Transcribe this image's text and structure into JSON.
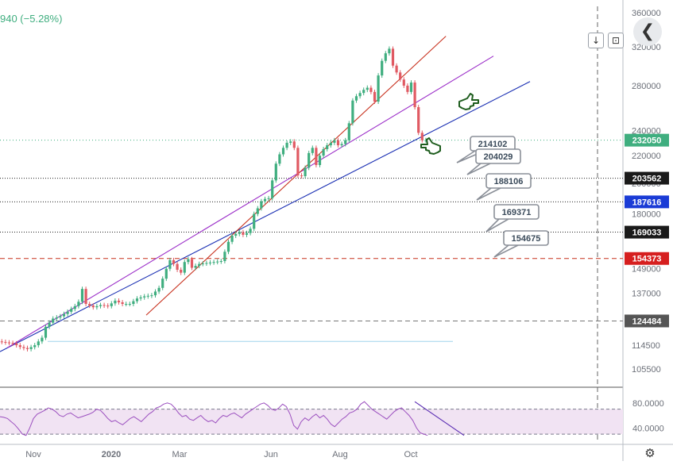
{
  "header": {
    "change_text": "940 (−5.28%)",
    "scroll_icon": "arrow-down-icon",
    "scroll_glyph": "↓",
    "toggle_icon": "scale-toggle-icon",
    "toggle_glyph": "⊡",
    "nav_icon": "chevron-left-icon",
    "nav_glyph": "❮"
  },
  "price_axis": {
    "ticks": [
      "360000",
      "320000",
      "280000",
      "240000",
      "220000",
      "200000",
      "180000",
      "149000",
      "137000",
      "114500",
      "105500"
    ],
    "tick_values": [
      360000,
      320000,
      280000,
      240000,
      220000,
      200000,
      180000,
      149000,
      137000,
      114500,
      105500
    ],
    "labels": [
      {
        "text": "232050",
        "value": 232050,
        "color": "#3fae7f"
      },
      {
        "text": "203562",
        "value": 203562,
        "color": "#1a1a1a"
      },
      {
        "text": "187616",
        "value": 187616,
        "color": "#1a3bd6"
      },
      {
        "text": "169033",
        "value": 169033,
        "color": "#1a1a1a"
      },
      {
        "text": "154373",
        "value": 154373,
        "color": "#d61f1f"
      },
      {
        "text": "124484",
        "value": 124484,
        "color": "#555555"
      }
    ]
  },
  "rsi_axis": {
    "ticks": [
      "80.0000",
      "40.0000"
    ],
    "tick_values": [
      80,
      40
    ]
  },
  "time_axis": {
    "labels": [
      "Nov",
      "2020",
      "Mar",
      "Jun",
      "Aug",
      "Oct"
    ]
  },
  "callouts": [
    "214102",
    "204029",
    "188106",
    "169371",
    "154675"
  ],
  "settings_icon": "gear-icon",
  "settings_glyph": "⚙",
  "chart_data": {
    "type": "candlestick",
    "y_scale": "log",
    "x_labels": [
      "Nov",
      "2020",
      "Mar",
      "Jun",
      "Aug",
      "Oct"
    ],
    "horizontal_levels": [
      232050,
      203562,
      187616,
      169033,
      154373,
      124484,
      116000
    ],
    "callout_values": [
      214102,
      204029,
      188106,
      169371,
      154675
    ],
    "price_path": [
      [
        0,
        116000
      ],
      [
        2,
        115600
      ],
      [
        4,
        115200
      ],
      [
        6,
        113800
      ],
      [
        8,
        113000
      ],
      [
        10,
        114500
      ],
      [
        12,
        117500
      ],
      [
        13,
        122000
      ],
      [
        15,
        125500
      ],
      [
        17,
        126500
      ],
      [
        19,
        128500
      ],
      [
        21,
        131000
      ],
      [
        22,
        133000
      ],
      [
        23,
        139000
      ],
      [
        24,
        132000
      ],
      [
        26,
        130500
      ],
      [
        28,
        131500
      ],
      [
        30,
        131000
      ],
      [
        32,
        133500
      ],
      [
        34,
        132000
      ],
      [
        36,
        132000
      ],
      [
        38,
        134500
      ],
      [
        40,
        135500
      ],
      [
        42,
        136000
      ],
      [
        44,
        139500
      ],
      [
        45,
        144000
      ],
      [
        46,
        149000
      ],
      [
        47,
        153500
      ],
      [
        48,
        151500
      ],
      [
        49,
        148500
      ],
      [
        50,
        147000
      ],
      [
        51,
        152500
      ],
      [
        52,
        154000
      ],
      [
        53,
        149500
      ],
      [
        55,
        151500
      ],
      [
        57,
        152000
      ],
      [
        59,
        152500
      ],
      [
        61,
        153000
      ],
      [
        62,
        158000
      ],
      [
        63,
        163500
      ],
      [
        64,
        167000
      ],
      [
        66,
        169000
      ],
      [
        67,
        167500
      ],
      [
        68,
        168500
      ],
      [
        69,
        171000
      ],
      [
        70,
        180000
      ],
      [
        71,
        183500
      ],
      [
        72,
        188000
      ],
      [
        73,
        189500
      ],
      [
        74,
        190000
      ],
      [
        75,
        202000
      ],
      [
        76,
        214000
      ],
      [
        77,
        221000
      ],
      [
        78,
        226000
      ],
      [
        79,
        230000
      ],
      [
        80,
        231000
      ],
      [
        81,
        226000
      ],
      [
        82,
        205500
      ],
      [
        83,
        205000
      ],
      [
        84,
        211000
      ],
      [
        85,
        222000
      ],
      [
        86,
        226000
      ],
      [
        87,
        213000
      ],
      [
        88,
        220000
      ],
      [
        89,
        225000
      ],
      [
        90,
        228000
      ],
      [
        91,
        230000
      ],
      [
        92,
        232000
      ],
      [
        93,
        228000
      ],
      [
        94,
        229000
      ],
      [
        95,
        232000
      ],
      [
        96,
        246000
      ],
      [
        97,
        266000
      ],
      [
        98,
        270000
      ],
      [
        99,
        273000
      ],
      [
        100,
        276000
      ],
      [
        101,
        278000
      ],
      [
        102,
        274000
      ],
      [
        103,
        265000
      ],
      [
        104,
        290000
      ],
      [
        105,
        305000
      ],
      [
        106,
        313000
      ],
      [
        107,
        318000
      ],
      [
        108,
        300000
      ],
      [
        109,
        293000
      ],
      [
        110,
        286000
      ],
      [
        111,
        280000
      ],
      [
        112,
        274000
      ],
      [
        113,
        283000
      ],
      [
        114,
        260000
      ],
      [
        115,
        238000
      ],
      [
        116,
        232000
      ],
      [
        117,
        232050
      ]
    ],
    "trendlines": [
      {
        "name": "",
        "color": "#1a2fb3",
        "from": [
          0,
          112000
        ],
        "to": [
          145,
          284000
        ]
      },
      {
        "name": "",
        "color": "#9b2dc8",
        "from": [
          2,
          113500
        ],
        "to": [
          135,
          310000
        ]
      },
      {
        "name": "",
        "color": "#c8321f",
        "from": [
          40,
          127000
        ],
        "to": [
          122,
          332000
        ]
      }
    ],
    "rsi": {
      "range": [
        20,
        100
      ],
      "levels": [
        70,
        30
      ],
      "values": [
        58,
        57,
        55,
        50,
        45,
        38,
        30,
        28,
        40,
        55,
        62,
        65,
        68,
        72,
        70,
        66,
        60,
        58,
        62,
        64,
        60,
        56,
        58,
        60,
        62,
        65,
        70,
        68,
        62,
        55,
        50,
        52,
        48,
        45,
        50,
        55,
        58,
        54,
        50,
        56,
        62,
        66,
        72,
        74,
        78,
        80,
        78,
        72,
        64,
        58,
        60,
        54,
        52,
        56,
        60,
        54,
        50,
        52,
        48,
        55,
        60,
        58,
        62,
        64,
        60,
        56,
        62,
        66,
        70,
        74,
        78,
        80,
        76,
        70,
        68,
        72,
        78,
        74,
        62,
        44,
        38,
        50,
        56,
        52,
        58,
        62,
        56,
        60,
        54,
        46,
        42,
        48,
        54,
        58,
        64,
        66,
        70,
        78,
        82,
        76,
        70,
        66,
        62,
        58,
        54,
        60,
        66,
        70,
        72,
        66,
        60,
        52,
        40,
        32,
        30,
        28
      ]
    }
  }
}
